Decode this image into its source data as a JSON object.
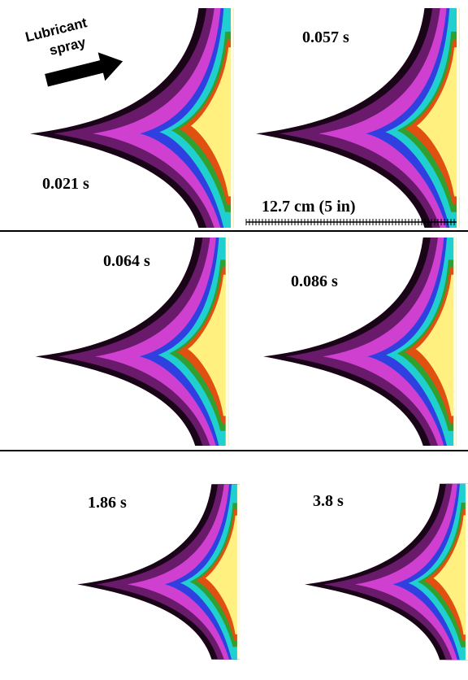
{
  "arrow_label": [
    "Lubricant",
    "spray"
  ],
  "scale_bar": "12.7 cm (5 in)",
  "panels": [
    {
      "time": "0.021 s"
    },
    {
      "time": "0.057 s"
    },
    {
      "time": "0.064 s"
    },
    {
      "time": "0.086 s"
    },
    {
      "time": "1.86 s"
    },
    {
      "time": "3.8 s"
    }
  ]
}
